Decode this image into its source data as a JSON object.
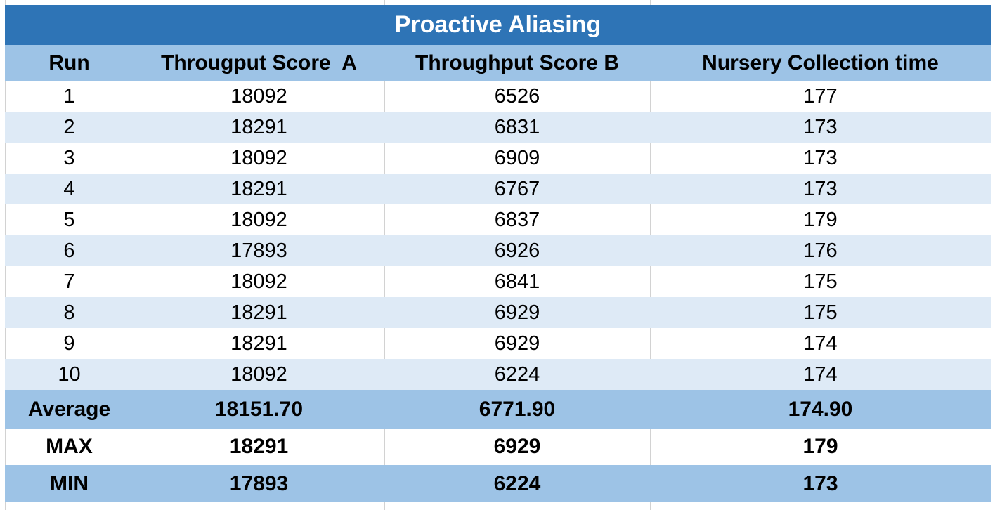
{
  "title": "Proactive Aliasing",
  "columns": [
    "Run",
    "Througput Score  A",
    "Throughput Score B",
    "Nursery Collection time"
  ],
  "rows": [
    [
      "1",
      "18092",
      "6526",
      "177"
    ],
    [
      "2",
      "18291",
      "6831",
      "173"
    ],
    [
      "3",
      "18092",
      "6909",
      "173"
    ],
    [
      "4",
      "18291",
      "6767",
      "173"
    ],
    [
      "5",
      "18092",
      "6837",
      "179"
    ],
    [
      "6",
      "17893",
      "6926",
      "176"
    ],
    [
      "7",
      "18092",
      "6841",
      "175"
    ],
    [
      "8",
      "18291",
      "6929",
      "175"
    ],
    [
      "9",
      "18291",
      "6929",
      "174"
    ],
    [
      "10",
      "18092",
      "6224",
      "174"
    ]
  ],
  "summary": [
    [
      "Average",
      "18151.70",
      "6771.90",
      "174.90"
    ],
    [
      "MAX",
      "18291",
      "6929",
      "179"
    ],
    [
      "MIN",
      "17893",
      "6224",
      "173"
    ]
  ],
  "colors": {
    "title_bg": "#2e74b6",
    "title_text": "#ffffff",
    "header_bg": "#9dc3e6",
    "alt_row_bg": "#deeaf6",
    "summary_bg": "#9dc3e6",
    "gridline": "#d2d2d2",
    "body_text": "#000000"
  },
  "chart_data": {
    "type": "table",
    "title": "Proactive Aliasing",
    "columns": [
      "Run",
      "Througput Score  A",
      "Throughput Score B",
      "Nursery Collection time"
    ],
    "rows": [
      [
        1,
        18092,
        6526,
        177
      ],
      [
        2,
        18291,
        6831,
        173
      ],
      [
        3,
        18092,
        6909,
        173
      ],
      [
        4,
        18291,
        6767,
        173
      ],
      [
        5,
        18092,
        6837,
        179
      ],
      [
        6,
        17893,
        6926,
        176
      ],
      [
        7,
        18092,
        6841,
        175
      ],
      [
        8,
        18291,
        6929,
        175
      ],
      [
        9,
        18291,
        6929,
        174
      ],
      [
        10,
        18092,
        6224,
        174
      ]
    ],
    "summary": {
      "Average": [
        18151.7,
        6771.9,
        174.9
      ],
      "MAX": [
        18291,
        6929,
        179
      ],
      "MIN": [
        17893,
        6224,
        173
      ]
    },
    "layout_hints": {
      "alternating_row_fill": true,
      "header_fill": "#9dc3e6",
      "title_fill": "#2e74b6"
    }
  }
}
